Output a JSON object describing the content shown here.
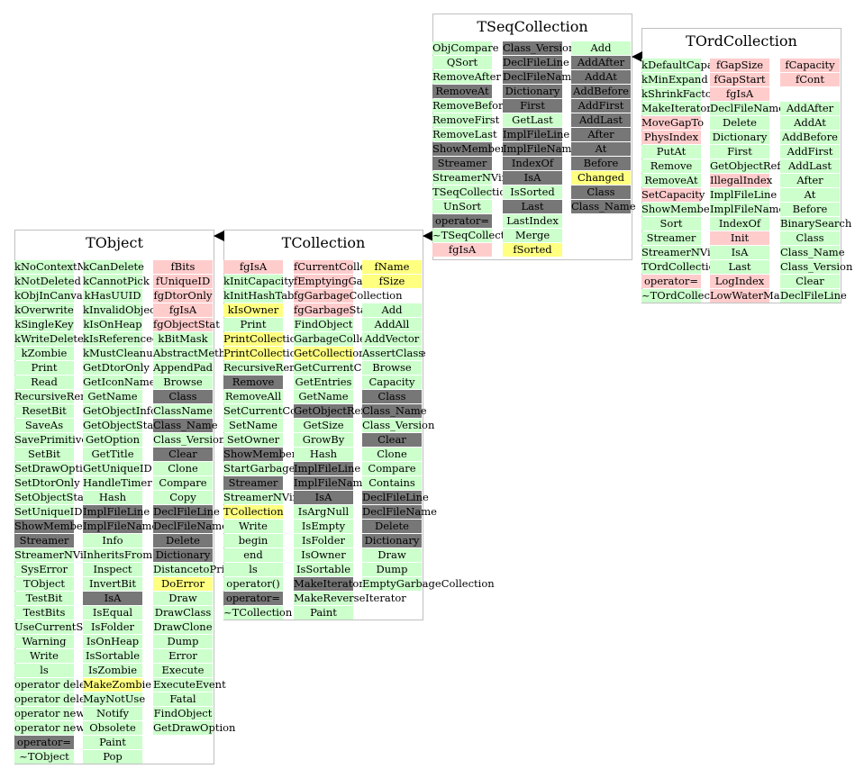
{
  "palette": {
    "public": "#ccffcc",
    "protected": "#777777",
    "private": "#ffcccc",
    "highlight": "#ffff80"
  },
  "classes": [
    {
      "id": "tobject",
      "name": "TObject",
      "box": "tobject",
      "columns": [
        [
          [
            "kNoContextMenu",
            "g"
          ],
          [
            "kNotDeleted",
            "g"
          ],
          [
            "kObjInCanvas",
            "g"
          ],
          [
            "kOverwrite",
            "g"
          ],
          [
            "kSingleKey",
            "g"
          ],
          [
            "kWriteDelete",
            "g"
          ],
          [
            "kZombie",
            "g"
          ],
          [
            "Print",
            "g"
          ],
          [
            "Read",
            "g"
          ],
          [
            "RecursiveRemove",
            "g"
          ],
          [
            "ResetBit",
            "g"
          ],
          [
            "SaveAs",
            "g"
          ],
          [
            "SavePrimitive",
            "g"
          ],
          [
            "SetBit",
            "g"
          ],
          [
            "SetDrawOption",
            "g"
          ],
          [
            "SetDtorOnly",
            "g"
          ],
          [
            "SetObjectStat",
            "g"
          ],
          [
            "SetUniqueID",
            "g"
          ],
          [
            "ShowMembers",
            "d"
          ],
          [
            "Streamer",
            "d"
          ],
          [
            "StreamerNVirtual",
            "g"
          ],
          [
            "SysError",
            "g"
          ],
          [
            "TObject",
            "g"
          ],
          [
            "TestBit",
            "g"
          ],
          [
            "TestBits",
            "g"
          ],
          [
            "UseCurrentStyle",
            "g"
          ],
          [
            "Warning",
            "g"
          ],
          [
            "Write",
            "g"
          ],
          [
            "ls",
            "g"
          ],
          [
            "operator delete",
            "g"
          ],
          [
            "operator delete[]",
            "g"
          ],
          [
            "operator new",
            "g"
          ],
          [
            "operator new[]",
            "g"
          ],
          [
            "operator=",
            "d"
          ],
          [
            "~TObject",
            "g"
          ]
        ],
        [
          [
            "kCanDelete",
            "g"
          ],
          [
            "kCannotPick",
            "g"
          ],
          [
            "kHasUUID",
            "g"
          ],
          [
            "kInvalidObject",
            "g"
          ],
          [
            "kIsOnHeap",
            "g"
          ],
          [
            "kIsReferenced",
            "g"
          ],
          [
            "kMustCleanup",
            "g"
          ],
          [
            "GetDtorOnly",
            "g"
          ],
          [
            "GetIconName",
            "g"
          ],
          [
            "GetName",
            "g"
          ],
          [
            "GetObjectInfo",
            "g"
          ],
          [
            "GetObjectStat",
            "g"
          ],
          [
            "GetOption",
            "g"
          ],
          [
            "GetTitle",
            "g"
          ],
          [
            "GetUniqueID",
            "g"
          ],
          [
            "HandleTimer",
            "g"
          ],
          [
            "Hash",
            "g"
          ],
          [
            "ImplFileLine",
            "d"
          ],
          [
            "ImplFileName",
            "d"
          ],
          [
            "Info",
            "g"
          ],
          [
            "InheritsFrom",
            "g"
          ],
          [
            "Inspect",
            "g"
          ],
          [
            "InvertBit",
            "g"
          ],
          [
            "IsA",
            "d"
          ],
          [
            "IsEqual",
            "g"
          ],
          [
            "IsFolder",
            "g"
          ],
          [
            "IsOnHeap",
            "g"
          ],
          [
            "IsSortable",
            "g"
          ],
          [
            "IsZombie",
            "g"
          ],
          [
            "MakeZombie",
            "y"
          ],
          [
            "MayNotUse",
            "g"
          ],
          [
            "Notify",
            "g"
          ],
          [
            "Obsolete",
            "g"
          ],
          [
            "Paint",
            "g"
          ],
          [
            "Pop",
            "g"
          ]
        ],
        [
          [
            "fBits",
            "p"
          ],
          [
            "fUniqueID",
            "p"
          ],
          [
            "fgDtorOnly",
            "p"
          ],
          [
            "fgIsA",
            "p"
          ],
          [
            "fgObjectStat",
            "p"
          ],
          [
            "kBitMask",
            "g"
          ],
          [
            "AbstractMethod",
            "g"
          ],
          [
            "AppendPad",
            "g"
          ],
          [
            "Browse",
            "g"
          ],
          [
            "Class",
            "d"
          ],
          [
            "ClassName",
            "g"
          ],
          [
            "Class_Name",
            "d"
          ],
          [
            "Class_Version",
            "g"
          ],
          [
            "Clear",
            "d"
          ],
          [
            "Clone",
            "g"
          ],
          [
            "Compare",
            "g"
          ],
          [
            "Copy",
            "g"
          ],
          [
            "DeclFileLine",
            "d"
          ],
          [
            "DeclFileName",
            "d"
          ],
          [
            "Delete",
            "d"
          ],
          [
            "Dictionary",
            "d"
          ],
          [
            "DistancetoPrimitive",
            "g"
          ],
          [
            "DoError",
            "y"
          ],
          [
            "Draw",
            "g"
          ],
          [
            "DrawClass",
            "g"
          ],
          [
            "DrawClone",
            "g"
          ],
          [
            "Dump",
            "g"
          ],
          [
            "Error",
            "g"
          ],
          [
            "Execute",
            "g"
          ],
          [
            "ExecuteEvent",
            "g"
          ],
          [
            "Fatal",
            "g"
          ],
          [
            "FindObject",
            "g"
          ],
          [
            "GetDrawOption",
            "g"
          ]
        ]
      ]
    },
    {
      "id": "tcollection",
      "name": "TCollection",
      "box": "tcollection",
      "columns": [
        [
          [
            "fgIsA",
            "p"
          ],
          [
            "kInitCapacity",
            "g"
          ],
          [
            "kInitHashTableCapacity",
            "g"
          ],
          [
            "kIsOwner",
            "y"
          ],
          [
            "Print",
            "g"
          ],
          [
            "PrintCollectionEntry",
            "y"
          ],
          [
            "PrintCollectionHeader",
            "y"
          ],
          [
            "RecursiveRemove",
            "g"
          ],
          [
            "Remove",
            "d"
          ],
          [
            "RemoveAll",
            "g"
          ],
          [
            "SetCurrentCollection",
            "g"
          ],
          [
            "SetName",
            "g"
          ],
          [
            "SetOwner",
            "g"
          ],
          [
            "ShowMembers",
            "d"
          ],
          [
            "StartGarbageCollection",
            "g"
          ],
          [
            "Streamer",
            "d"
          ],
          [
            "StreamerNVirtual",
            "g"
          ],
          [
            "TCollection",
            "y"
          ],
          [
            "Write",
            "g"
          ],
          [
            "begin",
            "g"
          ],
          [
            "end",
            "g"
          ],
          [
            "ls",
            "g"
          ],
          [
            "operator()",
            "g"
          ],
          [
            "operator=",
            "d"
          ],
          [
            "~TCollection",
            "g"
          ]
        ],
        [
          [
            "fCurrentCollection",
            "p"
          ],
          [
            "fEmptyingGarbage",
            "p"
          ],
          [
            "fgGarbageCollection",
            "p"
          ],
          [
            "fgGarbageStack",
            "p"
          ],
          [
            "FindObject",
            "g"
          ],
          [
            "GarbageCollect",
            "g"
          ],
          [
            "GetCollectionEntryName",
            "y"
          ],
          [
            "GetCurrentCollection",
            "g"
          ],
          [
            "GetEntries",
            "g"
          ],
          [
            "GetName",
            "g"
          ],
          [
            "GetObjectRef",
            "d"
          ],
          [
            "GetSize",
            "g"
          ],
          [
            "GrowBy",
            "g"
          ],
          [
            "Hash",
            "g"
          ],
          [
            "ImplFileLine",
            "d"
          ],
          [
            "ImplFileName",
            "d"
          ],
          [
            "IsA",
            "d"
          ],
          [
            "IsArgNull",
            "g"
          ],
          [
            "IsEmpty",
            "g"
          ],
          [
            "IsFolder",
            "g"
          ],
          [
            "IsOwner",
            "g"
          ],
          [
            "IsSortable",
            "g"
          ],
          [
            "MakeIterator",
            "d"
          ],
          [
            "MakeReverseIterator",
            "g"
          ],
          [
            "Paint",
            "g"
          ]
        ],
        [
          [
            "fName",
            "y"
          ],
          [
            "fSize",
            "y"
          ],
          [
            "",
            "w"
          ],
          [
            "Add",
            "g"
          ],
          [
            "AddAll",
            "g"
          ],
          [
            "AddVector",
            "g"
          ],
          [
            "AssertClass",
            "g"
          ],
          [
            "Browse",
            "g"
          ],
          [
            "Capacity",
            "g"
          ],
          [
            "Class",
            "d"
          ],
          [
            "Class_Name",
            "d"
          ],
          [
            "Class_Version",
            "g"
          ],
          [
            "Clear",
            "d"
          ],
          [
            "Clone",
            "g"
          ],
          [
            "Compare",
            "g"
          ],
          [
            "Contains",
            "g"
          ],
          [
            "DeclFileLine",
            "d"
          ],
          [
            "DeclFileName",
            "d"
          ],
          [
            "Delete",
            "d"
          ],
          [
            "Dictionary",
            "d"
          ],
          [
            "Draw",
            "g"
          ],
          [
            "Dump",
            "g"
          ],
          [
            "EmptyGarbageCollection",
            "g"
          ]
        ]
      ]
    },
    {
      "id": "tseqcollection",
      "name": "TSeqCollection",
      "box": "tseqcollection",
      "columns": [
        [
          [
            "ObjCompare",
            "g"
          ],
          [
            "QSort",
            "g"
          ],
          [
            "RemoveAfter",
            "g"
          ],
          [
            "RemoveAt",
            "d"
          ],
          [
            "RemoveBefore",
            "g"
          ],
          [
            "RemoveFirst",
            "g"
          ],
          [
            "RemoveLast",
            "g"
          ],
          [
            "ShowMembers",
            "d"
          ],
          [
            "Streamer",
            "d"
          ],
          [
            "StreamerNVirtual",
            "g"
          ],
          [
            "TSeqCollection",
            "g"
          ],
          [
            "UnSort",
            "g"
          ],
          [
            "operator=",
            "d"
          ],
          [
            "~TSeqCollection",
            "g"
          ],
          [
            "fgIsA",
            "p"
          ]
        ],
        [
          [
            "Class_Version",
            "d"
          ],
          [
            "DeclFileLine",
            "d"
          ],
          [
            "DeclFileName",
            "d"
          ],
          [
            "Dictionary",
            "d"
          ],
          [
            "First",
            "d"
          ],
          [
            "GetLast",
            "g"
          ],
          [
            "ImplFileLine",
            "d"
          ],
          [
            "ImplFileName",
            "d"
          ],
          [
            "IndexOf",
            "d"
          ],
          [
            "IsA",
            "d"
          ],
          [
            "IsSorted",
            "g"
          ],
          [
            "Last",
            "d"
          ],
          [
            "LastIndex",
            "g"
          ],
          [
            "Merge",
            "g"
          ],
          [
            "fSorted",
            "y"
          ]
        ],
        [
          [
            "Add",
            "g"
          ],
          [
            "AddAfter",
            "d"
          ],
          [
            "AddAt",
            "d"
          ],
          [
            "AddBefore",
            "d"
          ],
          [
            "AddFirst",
            "d"
          ],
          [
            "AddLast",
            "d"
          ],
          [
            "After",
            "d"
          ],
          [
            "At",
            "d"
          ],
          [
            "Before",
            "d"
          ],
          [
            "Changed",
            "y"
          ],
          [
            "Class",
            "d"
          ],
          [
            "Class_Name",
            "d"
          ]
        ]
      ]
    },
    {
      "id": "tordcollection",
      "name": "TOrdCollection",
      "box": "tordcollection",
      "columns": [
        [
          [
            "kDefaultCapacity",
            "g"
          ],
          [
            "kMinExpand",
            "g"
          ],
          [
            "kShrinkFactor",
            "g"
          ],
          [
            "MakeIterator",
            "g"
          ],
          [
            "MoveGapTo",
            "p"
          ],
          [
            "PhysIndex",
            "p"
          ],
          [
            "PutAt",
            "g"
          ],
          [
            "Remove",
            "g"
          ],
          [
            "RemoveAt",
            "g"
          ],
          [
            "SetCapacity",
            "p"
          ],
          [
            "ShowMembers",
            "g"
          ],
          [
            "Sort",
            "g"
          ],
          [
            "Streamer",
            "g"
          ],
          [
            "StreamerNVirtual",
            "g"
          ],
          [
            "TOrdCollection",
            "g"
          ],
          [
            "operator=",
            "p"
          ],
          [
            "~TOrdCollection",
            "g"
          ]
        ],
        [
          [
            "fGapSize",
            "p"
          ],
          [
            "fGapStart",
            "p"
          ],
          [
            "fgIsA",
            "p"
          ],
          [
            "DeclFileName",
            "g"
          ],
          [
            "Delete",
            "g"
          ],
          [
            "Dictionary",
            "g"
          ],
          [
            "First",
            "g"
          ],
          [
            "GetObjectRef",
            "g"
          ],
          [
            "IllegalIndex",
            "p"
          ],
          [
            "ImplFileLine",
            "g"
          ],
          [
            "ImplFileName",
            "g"
          ],
          [
            "IndexOf",
            "g"
          ],
          [
            "Init",
            "p"
          ],
          [
            "IsA",
            "g"
          ],
          [
            "Last",
            "g"
          ],
          [
            "LogIndex",
            "p"
          ],
          [
            "LowWaterMark",
            "p"
          ]
        ],
        [
          [
            "fCapacity",
            "p"
          ],
          [
            "fCont",
            "p"
          ],
          [
            "",
            "w"
          ],
          [
            "AddAfter",
            "g"
          ],
          [
            "AddAt",
            "g"
          ],
          [
            "AddBefore",
            "g"
          ],
          [
            "AddFirst",
            "g"
          ],
          [
            "AddLast",
            "g"
          ],
          [
            "After",
            "g"
          ],
          [
            "At",
            "g"
          ],
          [
            "Before",
            "g"
          ],
          [
            "BinarySearch",
            "g"
          ],
          [
            "Class",
            "g"
          ],
          [
            "Class_Name",
            "g"
          ],
          [
            "Class_Version",
            "g"
          ],
          [
            "Clear",
            "g"
          ],
          [
            "DeclFileLine",
            "g"
          ]
        ]
      ]
    }
  ]
}
